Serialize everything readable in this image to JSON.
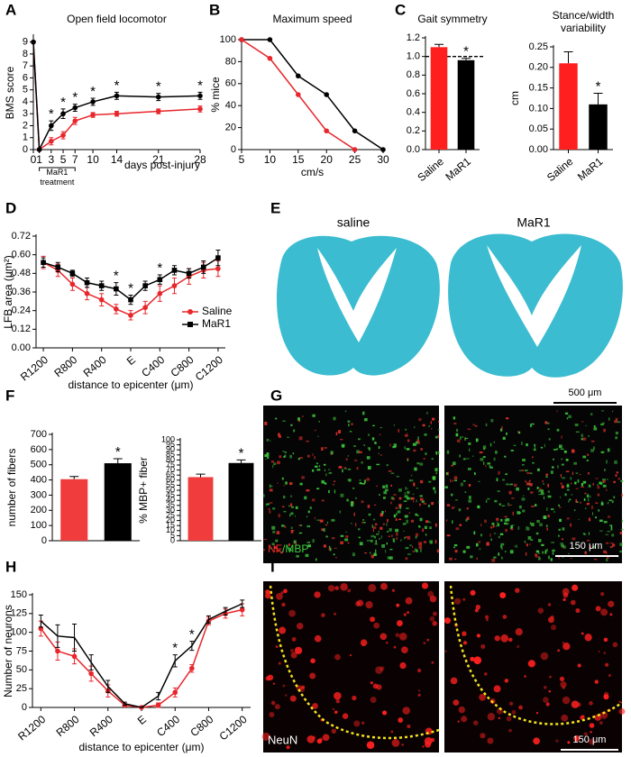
{
  "panel_labels": [
    "A",
    "B",
    "C",
    "D",
    "E",
    "F",
    "G",
    "H",
    "I"
  ],
  "images": [
    {
      "labels": [
        "saline",
        "MaR1"
      ],
      "scale_bar": "500 μm"
    },
    {
      "stain": [
        "NF",
        "/MBP"
      ],
      "scale_bar": "150 μm"
    },
    {
      "stain": [
        "NeuN"
      ],
      "scale_bar": "150 μm"
    }
  ],
  "chart_data": [
    {
      "type": "line",
      "title": "Open field locomotor",
      "ylabel": "BMS score",
      "xlabel": "days post-injury",
      "x": [
        0,
        1,
        3,
        5,
        7,
        10,
        14,
        21,
        28
      ],
      "xlim": [
        0,
        28
      ],
      "xticks": [
        0,
        1,
        3,
        5,
        7,
        10,
        14,
        21,
        28
      ],
      "ylim": [
        0,
        9.5
      ],
      "yticks": [
        0,
        1,
        2,
        3,
        4,
        5,
        6,
        7,
        8,
        9
      ],
      "series": [
        {
          "color": "#e8262b",
          "marker": "circle",
          "values": [
            9,
            0,
            0.7,
            1.2,
            2.4,
            2.9,
            3.0,
            3.2,
            3.4
          ],
          "errors": [
            0,
            0,
            0.3,
            0.3,
            0.3,
            0.2,
            0.2,
            0.2,
            0.25
          ]
        },
        {
          "color": "#000000",
          "marker": "circle",
          "values": [
            9,
            0,
            2.0,
            3.0,
            3.5,
            4.0,
            4.5,
            4.4,
            4.5
          ],
          "errors": [
            0,
            0,
            0.4,
            0.4,
            0.3,
            0.3,
            0.3,
            0.3,
            0.3
          ]
        }
      ],
      "annotations": [
        {
          "text": "*",
          "x": 3
        },
        {
          "text": "*",
          "x": 5
        },
        {
          "text": "*",
          "x": 7
        },
        {
          "text": "*",
          "x": 10
        },
        {
          "text": "*",
          "x": 14
        },
        {
          "text": "*",
          "x": 21
        },
        {
          "text": "*",
          "x": 28
        }
      ],
      "x_note": {
        "text": "MaR1 treatment",
        "from": 1,
        "to": 7
      }
    },
    {
      "type": "line",
      "title": "Maximum speed",
      "ylabel": "% mice",
      "xlabel": "cm/s",
      "x": [
        5,
        10,
        15,
        20,
        25,
        30
      ],
      "xlim": [
        5,
        30
      ],
      "xticks": [
        5,
        10,
        15,
        20,
        25,
        30
      ],
      "ylim": [
        0,
        100
      ],
      "yticks": [
        0,
        20,
        40,
        60,
        80,
        100
      ],
      "series": [
        {
          "color": "#000000",
          "marker": "circle",
          "values": [
            100,
            100,
            67,
            50,
            17,
            0
          ]
        },
        {
          "color": "#e8262b",
          "marker": "circle",
          "values": [
            100,
            83,
            50,
            17,
            0,
            null
          ]
        }
      ]
    },
    {
      "type": "bar",
      "title": "Gait symmetry",
      "categories": [
        "Saline",
        "MaR1"
      ],
      "values": [
        1.1,
        0.96
      ],
      "errors": [
        0.03,
        0.02
      ],
      "colors": [
        "#ff1f1f",
        "#000000"
      ],
      "ylim": [
        0,
        1.2
      ],
      "yticks": [
        {
          "value": 0,
          "label": "0.0"
        },
        0.2,
        0.4,
        0.6,
        0.8,
        {
          "value": 1,
          "label": "1.0"
        },
        1.2
      ],
      "reference_line": 1,
      "annotations": [
        {
          "text": "*",
          "x": 1
        }
      ]
    },
    {
      "type": "bar",
      "title": "Stance/width variability",
      "ylabel": "cm",
      "categories": [
        "Saline",
        "MaR1"
      ],
      "values": [
        0.21,
        0.11
      ],
      "errors": [
        0.028,
        0.027
      ],
      "colors": [
        "#ff1f1f",
        "#000000"
      ],
      "ylim": [
        0,
        0.25
      ],
      "yticks": [
        {
          "value": 0,
          "label": "0.00"
        },
        0.05,
        {
          "value": 0.1,
          "label": "0.10"
        },
        0.15,
        {
          "value": 0.2,
          "label": "0.20"
        },
        0.25
      ],
      "annotations": [
        {
          "text": "*",
          "x": 1
        }
      ]
    },
    {
      "type": "line",
      "ylabel": "LFB area (μm²)",
      "xlabel": "distance to epicenter (μm)",
      "categories": [
        "R1200",
        null,
        "R800",
        null,
        "R400",
        null,
        "E",
        null,
        "C400",
        null,
        "C800",
        null,
        "C1200"
      ],
      "ylim": [
        0,
        0.72
      ],
      "yticks": [
        {
          "value": 0,
          "label": "0.00"
        },
        0.12,
        0.24,
        0.36,
        0.48,
        {
          "value": 0.6,
          "label": "0.60"
        },
        0.72
      ],
      "series": [
        {
          "name": "Saline",
          "color": "#e8262b",
          "marker": "circle",
          "values": [
            0.55,
            0.5,
            0.41,
            0.35,
            0.31,
            0.25,
            0.21,
            0.26,
            0.35,
            0.4,
            0.46,
            0.5,
            0.51
          ],
          "errors": [
            0.04,
            0.04,
            0.04,
            0.04,
            0.04,
            0.03,
            0.03,
            0.04,
            0.05,
            0.05,
            0.05,
            0.05,
            0.05
          ]
        },
        {
          "name": "MaR1",
          "color": "#000000",
          "marker": "square",
          "values": [
            0.55,
            0.52,
            0.48,
            0.42,
            0.4,
            0.38,
            0.31,
            0.4,
            0.44,
            0.5,
            0.48,
            0.52,
            0.58
          ],
          "errors": [
            0.03,
            0.03,
            0.02,
            0.03,
            0.03,
            0.04,
            0.03,
            0.03,
            0.03,
            0.03,
            0.03,
            0.04,
            0.05
          ]
        }
      ],
      "legend": "lower right",
      "annotations": [
        {
          "text": "*",
          "x": 5
        },
        {
          "text": "*",
          "x": 6
        },
        {
          "text": "*",
          "x": 8
        }
      ]
    },
    {
      "type": "bar",
      "ylabel": "number of fibers",
      "categories": [
        null,
        null
      ],
      "values": [
        405,
        510
      ],
      "errors": [
        18,
        30
      ],
      "colors": [
        "#f03c3c",
        "#000000"
      ],
      "ylim": [
        0,
        700
      ],
      "yticks": [
        0,
        100,
        200,
        300,
        400,
        500,
        600,
        700
      ],
      "annotations": [
        {
          "text": "*",
          "x": 1
        }
      ]
    },
    {
      "type": "bar",
      "ylabel": "% MBP+ fiber",
      "categories": [
        null,
        null
      ],
      "values": [
        63,
        77
      ],
      "errors": [
        3,
        3
      ],
      "colors": [
        "#f03c3c",
        "#000000"
      ],
      "ylim": [
        0,
        100
      ],
      "yticks": [
        0,
        5,
        10,
        15,
        20,
        25,
        30,
        35,
        40,
        45,
        50,
        55,
        60,
        65,
        70,
        75,
        80,
        85,
        90,
        95,
        100
      ],
      "annotations": [
        {
          "text": "*",
          "x": 1
        }
      ]
    },
    {
      "type": "line",
      "ylabel": "Number of neurons",
      "xlabel": "distance to epicenter (μm)",
      "categories": [
        "R1200",
        null,
        "R800",
        null,
        "R400",
        null,
        "E",
        null,
        "C400",
        null,
        "C800",
        null,
        "C1200"
      ],
      "ylim": [
        0,
        150
      ],
      "yticks": [
        0,
        25,
        50,
        75,
        100,
        125,
        150
      ],
      "series": [
        {
          "color": "#e8262b",
          "marker": "circle",
          "values": [
            105,
            75,
            68,
            45,
            22,
            3,
            0,
            3,
            20,
            52,
            115,
            125,
            130
          ],
          "errors": [
            10,
            12,
            10,
            10,
            8,
            2,
            0,
            3,
            6,
            5,
            5,
            6,
            8
          ]
        },
        {
          "color": "#000000",
          "values": [
            115,
            95,
            93,
            60,
            28,
            5,
            0,
            15,
            62,
            82,
            117,
            128,
            138
          ],
          "errors": [
            8,
            15,
            18,
            10,
            8,
            2,
            0,
            5,
            8,
            6,
            5,
            5,
            5
          ]
        }
      ],
      "annotations": [
        {
          "text": "*",
          "x": 8
        },
        {
          "text": "*",
          "x": 9
        }
      ]
    }
  ]
}
